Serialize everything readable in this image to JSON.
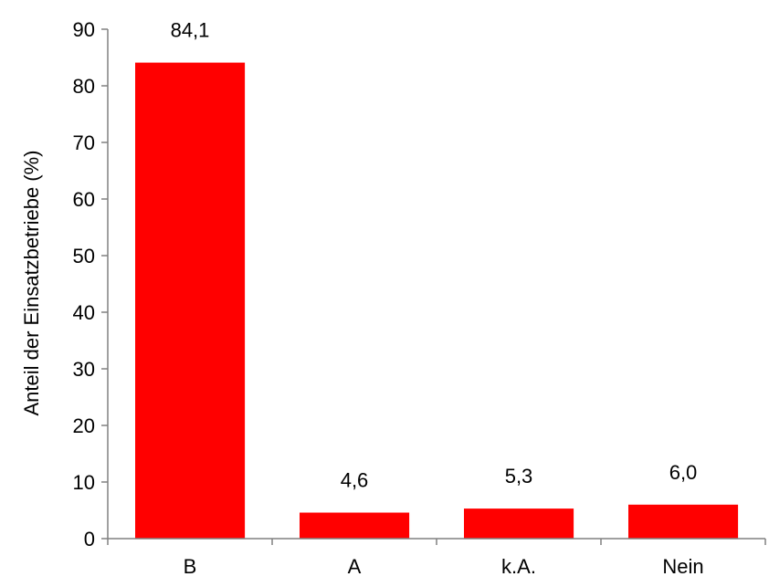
{
  "chart_data": {
    "type": "bar",
    "categories": [
      "B",
      "A",
      "k.A.",
      "Nein"
    ],
    "values": [
      84.1,
      4.6,
      5.3,
      6.0
    ],
    "value_labels": [
      "84,1",
      "4,6",
      "5,3",
      "6,0"
    ],
    "ylabel": "Anteil der Einsatzbetriebe (%)",
    "xlabel": "",
    "ylim": [
      0,
      90
    ],
    "yticks": [
      0,
      10,
      20,
      30,
      40,
      50,
      60,
      70,
      80,
      90
    ],
    "grid": false,
    "legend": "none",
    "bar_color": "#ff0000",
    "axis_color": "#808080"
  }
}
